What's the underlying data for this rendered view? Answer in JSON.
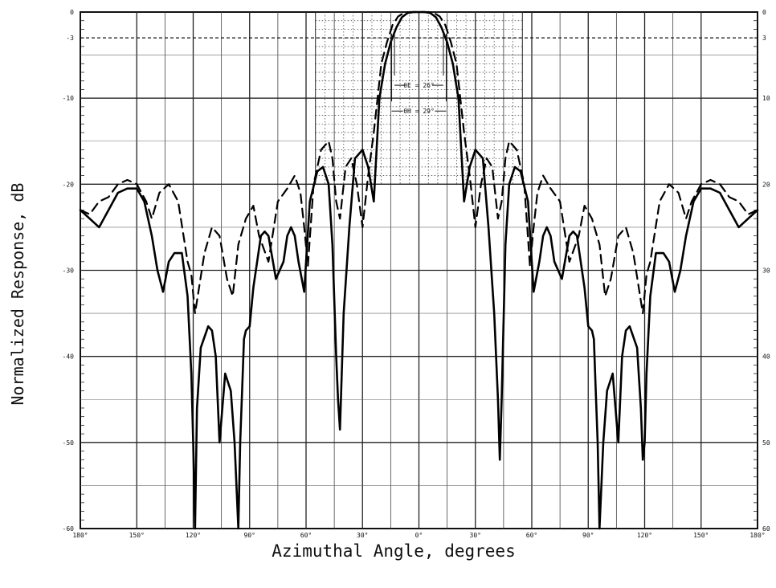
{
  "chart_data": {
    "type": "line",
    "title": "",
    "xlabel": "Azimuthal Angle, degrees",
    "ylabel": "Normalized Response, dB",
    "xlim": [
      -180,
      180
    ],
    "ylim": [
      -60,
      0
    ],
    "x_ticks": [
      {
        "value": -180,
        "label": "180°"
      },
      {
        "value": -150,
        "label": "150°"
      },
      {
        "value": -120,
        "label": "120°"
      },
      {
        "value": -90,
        "label": "90°"
      },
      {
        "value": -60,
        "label": "60°"
      },
      {
        "value": -30,
        "label": "30°"
      },
      {
        "value": 0,
        "label": "0°"
      },
      {
        "value": 30,
        "label": "30°"
      },
      {
        "value": 60,
        "label": "60°"
      },
      {
        "value": 90,
        "label": "90°"
      },
      {
        "value": 120,
        "label": "120°"
      },
      {
        "value": 150,
        "label": "150°"
      },
      {
        "value": 180,
        "label": "180°"
      }
    ],
    "y_ticks_left": [
      {
        "value": 0,
        "label": "0"
      },
      {
        "value": -3,
        "label": "-3"
      },
      {
        "value": -10,
        "label": "-10"
      },
      {
        "value": -20,
        "label": "-20"
      },
      {
        "value": -30,
        "label": "-30"
      },
      {
        "value": -40,
        "label": "-40"
      },
      {
        "value": -50,
        "label": "-50"
      },
      {
        "value": -60,
        "label": "-60"
      }
    ],
    "y_ticks_right": [
      {
        "value": 0,
        "label": "0"
      },
      {
        "value": -3,
        "label": "3"
      },
      {
        "value": -10,
        "label": "10"
      },
      {
        "value": -20,
        "label": "20"
      },
      {
        "value": -30,
        "label": "30"
      },
      {
        "value": -40,
        "label": "40"
      },
      {
        "value": -50,
        "label": "50"
      },
      {
        "value": -60,
        "label": "60"
      }
    ],
    "grid": true,
    "reference_line_db": -3,
    "mask_region": {
      "x": [
        -55,
        55
      ],
      "y": [
        -20,
        0
      ]
    },
    "annotations": [
      {
        "text": "θE = 26°",
        "x": [
          -13,
          13
        ],
        "y": -8.5
      },
      {
        "text": "θH = 29°",
        "x": [
          -14.5,
          14.5
        ],
        "y": -11.5
      }
    ],
    "series": [
      {
        "style": "dashed",
        "x": [
          -180,
          -175,
          -170,
          -165,
          -160,
          -155,
          -150,
          -145,
          -142,
          -138,
          -133,
          -128,
          -123,
          -121,
          -119,
          -114,
          -110,
          -106,
          -102,
          -99,
          -96,
          -92,
          -88,
          -85,
          -80,
          -75,
          -70,
          -66,
          -63,
          -61,
          -59,
          -56,
          -52,
          -48,
          -46,
          -44,
          -42,
          -39,
          -36,
          -33,
          -30,
          -27,
          -24,
          -22,
          -20,
          -17,
          -14,
          -11,
          -8,
          -5,
          -2,
          0,
          2,
          5,
          8,
          11,
          14,
          17,
          20,
          22,
          24,
          27,
          30,
          33,
          36,
          39,
          42,
          44,
          46,
          48,
          52,
          56,
          59,
          61,
          63,
          66,
          70,
          75,
          80,
          85,
          88,
          92,
          96,
          99,
          102,
          106,
          110,
          114,
          119,
          121,
          123,
          128,
          133,
          138,
          142,
          145,
          150,
          155,
          160,
          165,
          170,
          175,
          180
        ],
        "y": [
          -23,
          -23.5,
          -22,
          -21.5,
          -20,
          -19.5,
          -20,
          -22,
          -24,
          -21,
          -20,
          -22,
          -29,
          -30.5,
          -35,
          -28,
          -25,
          -26,
          -31,
          -33,
          -27,
          -24,
          -22.5,
          -26,
          -29,
          -22,
          -20.5,
          -19,
          -21,
          -25,
          -29.5,
          -20,
          -16,
          -15,
          -17,
          -22,
          -24,
          -18,
          -17,
          -20,
          -25,
          -19,
          -14,
          -10,
          -6,
          -3.5,
          -1.5,
          -0.5,
          -0.1,
          0,
          0,
          0,
          0,
          0,
          -0.1,
          -0.5,
          -1.5,
          -3.5,
          -6,
          -10,
          -14,
          -19,
          -25,
          -20,
          -17,
          -18,
          -24,
          -22,
          -17,
          -15,
          -16,
          -20,
          -29.5,
          -25,
          -21,
          -19,
          -20.5,
          -22,
          -29,
          -26,
          -22.5,
          -24,
          -27,
          -33,
          -31,
          -26,
          -25,
          -28,
          -35,
          -30.5,
          -29,
          -22,
          -20,
          -21,
          -24,
          -22,
          -20,
          -19.5,
          -20,
          -21.5,
          -22,
          -23.5,
          -23
        ]
      },
      {
        "style": "solid",
        "x": [
          -180,
          -175,
          -170,
          -165,
          -160,
          -155,
          -150,
          -146,
          -142,
          -139,
          -136,
          -133,
          -130,
          -126,
          -123,
          -121,
          -120,
          -119,
          -118,
          -116,
          -112,
          -110,
          -108,
          -106,
          -103,
          -100,
          -98,
          -96,
          -95,
          -94,
          -93,
          -92,
          -90,
          -88,
          -86,
          -84,
          -82,
          -80,
          -76,
          -72,
          -70,
          -68,
          -66,
          -64,
          -61,
          -58,
          -54,
          -51,
          -48,
          -46,
          -44,
          -43,
          -42,
          -40,
          -37,
          -34,
          -30,
          -27,
          -24,
          -21,
          -18,
          -15,
          -12,
          -9,
          -6,
          -3,
          0,
          3,
          6,
          9,
          12,
          15,
          18,
          21,
          24,
          27,
          30,
          34,
          37,
          40,
          42,
          43,
          44,
          46,
          48,
          51,
          54,
          58,
          61,
          64,
          66,
          68,
          70,
          72,
          76,
          80,
          82,
          84,
          86,
          88,
          90,
          92,
          93,
          94,
          95,
          96,
          98,
          100,
          103,
          106,
          108,
          110,
          112,
          116,
          118,
          119,
          120,
          121,
          123,
          126,
          130,
          133,
          136,
          139,
          142,
          146,
          150,
          155,
          160,
          165,
          170,
          175,
          180
        ],
        "y": [
          -23,
          -24,
          -25,
          -23,
          -21,
          -20.5,
          -20.5,
          -22,
          -26,
          -30,
          -32.5,
          -29,
          -28,
          -28,
          -33,
          -42,
          -50,
          -60,
          -46,
          -39,
          -36.5,
          -37,
          -40,
          -50,
          -42,
          -44,
          -50,
          -60,
          -50,
          -44,
          -38,
          -37,
          -36.5,
          -32,
          -29,
          -26,
          -25.5,
          -26,
          -31,
          -29,
          -26,
          -25,
          -26,
          -29,
          -32.5,
          -22,
          -18.5,
          -18,
          -20,
          -27,
          -40,
          -45,
          -48.5,
          -35,
          -25,
          -17,
          -16,
          -18,
          -22,
          -10,
          -6,
          -3.5,
          -1.8,
          -0.6,
          -0.1,
          0,
          0,
          0,
          -0.1,
          -0.6,
          -1.8,
          -3.5,
          -6,
          -10,
          -22,
          -18,
          -16,
          -17,
          -25,
          -35,
          -45,
          -52,
          -45,
          -27,
          -20,
          -18,
          -18.5,
          -22,
          -32.5,
          -29,
          -26,
          -25,
          -26,
          -29,
          -31,
          -26,
          -25.5,
          -26,
          -29,
          -32,
          -36.5,
          -37,
          -38,
          -44,
          -50,
          -60,
          -50,
          -44,
          -42,
          -50,
          -40,
          -37,
          -36.5,
          -39,
          -46,
          -52,
          -50,
          -42,
          -33,
          -28,
          -28,
          -29,
          -32.5,
          -30,
          -26,
          -22,
          -20.5,
          -20.5,
          -21,
          -23,
          -25,
          -24,
          -23
        ]
      }
    ]
  }
}
